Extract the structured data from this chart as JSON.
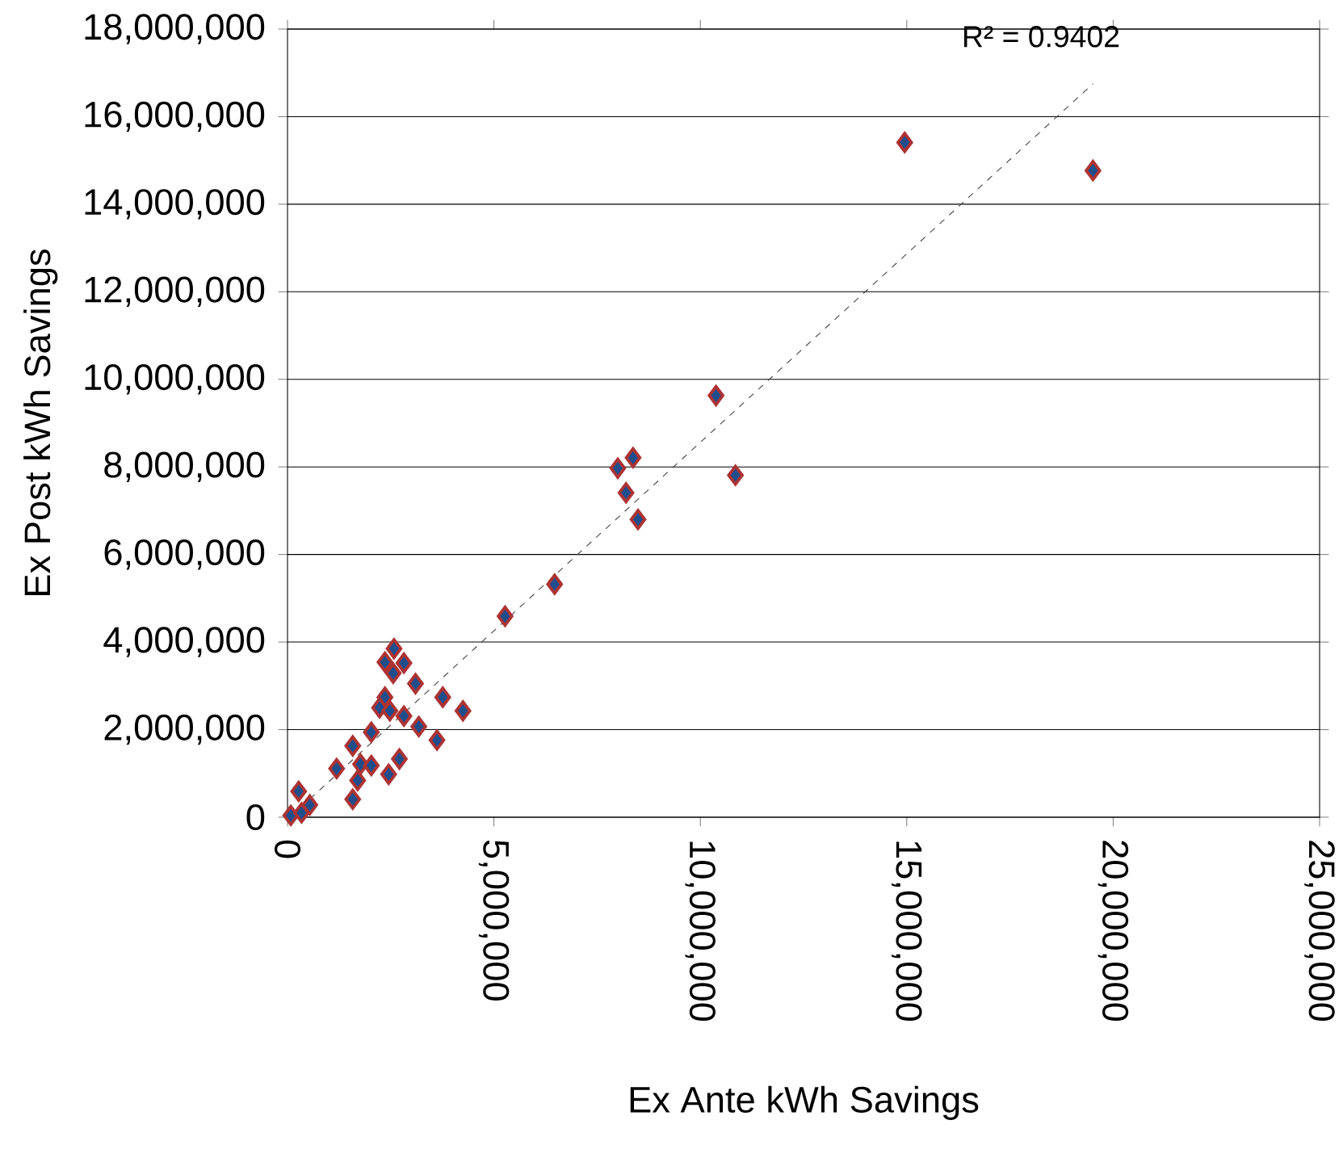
{
  "chart_data": {
    "type": "scatter",
    "xlabel": "Ex Ante kWh Savings",
    "ylabel": "Ex Post kWh Savings",
    "annotations": [
      "R² = 0.9402"
    ],
    "xlim": [
      0,
      25000000
    ],
    "ylim": [
      0,
      18000000
    ],
    "xticks": [
      {
        "value": 0,
        "label": "0"
      },
      {
        "value": 5000000,
        "label": "5,000,000"
      },
      {
        "value": 10000000,
        "label": "10,000,000"
      },
      {
        "value": 15000000,
        "label": "15,000,000"
      },
      {
        "value": 20000000,
        "label": "20,000,000"
      },
      {
        "value": 25000000,
        "label": "25,000,000"
      }
    ],
    "yticks": [
      {
        "value": 0,
        "label": "0"
      },
      {
        "value": 2000000,
        "label": "2,000,000"
      },
      {
        "value": 4000000,
        "label": "4,000,000"
      },
      {
        "value": 6000000,
        "label": "6,000,000"
      },
      {
        "value": 8000000,
        "label": "8,000,000"
      },
      {
        "value": 10000000,
        "label": "10,000,000"
      },
      {
        "value": 12000000,
        "label": "12,000,000"
      },
      {
        "value": 14000000,
        "label": "14,000,000"
      },
      {
        "value": 16000000,
        "label": "16,000,000"
      },
      {
        "value": 18000000,
        "label": "18,000,000"
      }
    ],
    "grid": "y",
    "marker": "diamond",
    "series": [
      {
        "color": "#1f4e8c",
        "x": [
          14950000,
          19510000,
          10380000,
          10850000,
          8000000,
          8370000,
          8200000,
          8490000,
          6470000,
          5270000,
          2580000,
          2360000,
          2820000,
          2560000,
          3100000,
          3760000,
          4250000,
          2360000,
          2230000,
          2480000,
          2820000,
          3180000,
          3620000,
          2030000,
          1580000,
          1190000,
          1770000,
          2030000,
          2710000,
          2450000,
          1700000,
          1580000,
          270000,
          540000,
          80000,
          340000
        ],
        "values": [
          15410000,
          14770000,
          9630000,
          7810000,
          7970000,
          8210000,
          7410000,
          6800000,
          5320000,
          4590000,
          3850000,
          3540000,
          3520000,
          3290000,
          3050000,
          2740000,
          2430000,
          2740000,
          2500000,
          2430000,
          2310000,
          2070000,
          1760000,
          1940000,
          1630000,
          1110000,
          1210000,
          1180000,
          1330000,
          980000,
          840000,
          410000,
          590000,
          280000,
          40000,
          100000
        ]
      },
      {
        "type": "line",
        "color": "#404040",
        "line_style": "dashed",
        "marker": "none",
        "x": [
          80000,
          19510000
        ],
        "values": [
          20000,
          16750000
        ]
      }
    ]
  }
}
